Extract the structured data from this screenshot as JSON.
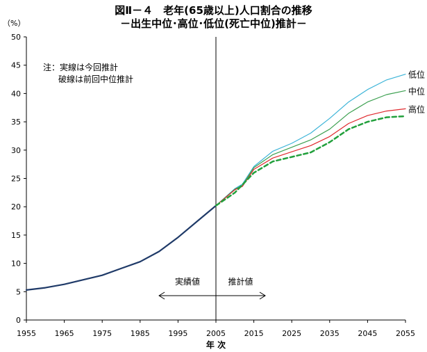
{
  "chart_data": {
    "type": "line",
    "title": "図Ⅱ－４　老年(65歳以上)人口割合の推移",
    "subtitle": "－出生中位･高位･低位(死亡中位)推計－",
    "ylabel": "（%）",
    "xlabel": "年 次",
    "xlim": [
      1955,
      2055
    ],
    "ylim": [
      0,
      50
    ],
    "x_ticks": [
      "1955",
      "1965",
      "1975",
      "1985",
      "1995",
      "2005",
      "2015",
      "2025",
      "2035",
      "2045",
      "2055"
    ],
    "y_ticks": [
      "0",
      "5",
      "10",
      "15",
      "20",
      "25",
      "30",
      "35",
      "40",
      "45",
      "50"
    ],
    "grid": false,
    "note_lines": [
      "注：実線は今回推計",
      "破線は前回中位推計"
    ],
    "divider_x": 2005,
    "arrow_labels": [
      "実績値",
      "推計値"
    ],
    "arrow_range": [
      1990,
      2018
    ],
    "series": [
      {
        "label": "",
        "color": "#1f3a68",
        "style": "solid",
        "x": [
          1955,
          1960,
          1965,
          1970,
          1975,
          1980,
          1985,
          1990,
          1995,
          2000,
          2005
        ],
        "y": [
          5.3,
          5.7,
          6.3,
          7.1,
          7.9,
          9.1,
          10.3,
          12.1,
          14.6,
          17.4,
          20.2
        ]
      },
      {
        "label": "低位",
        "color": "#3cb4d8",
        "style": "solid",
        "x": [
          2005,
          2010,
          2012,
          2015,
          2020,
          2025,
          2030,
          2035,
          2040,
          2045,
          2050,
          2055
        ],
        "y": [
          20.2,
          23.2,
          24.0,
          27.1,
          29.8,
          31.2,
          33.0,
          35.6,
          38.5,
          40.7,
          42.4,
          43.4
        ]
      },
      {
        "label": "中位",
        "color": "#3ca050",
        "style": "solid",
        "x": [
          2005,
          2010,
          2012,
          2015,
          2020,
          2025,
          2030,
          2035,
          2040,
          2045,
          2050,
          2055
        ],
        "y": [
          20.2,
          23.1,
          23.8,
          26.9,
          29.2,
          30.5,
          31.8,
          33.7,
          36.5,
          38.5,
          39.8,
          40.5
        ]
      },
      {
        "label": "高位",
        "color": "#e0282d",
        "style": "solid",
        "x": [
          2005,
          2010,
          2012,
          2015,
          2020,
          2025,
          2030,
          2035,
          2040,
          2045,
          2050,
          2055
        ],
        "y": [
          20.2,
          23.0,
          23.6,
          26.6,
          28.6,
          29.7,
          30.8,
          32.4,
          34.7,
          36.1,
          36.9,
          37.3
        ]
      },
      {
        "label": "",
        "color": "#22a03c",
        "style": "dashed",
        "x": [
          2005,
          2010,
          2015,
          2020,
          2025,
          2030,
          2035,
          2040,
          2045,
          2050,
          2055
        ],
        "y": [
          20.2,
          22.5,
          26.0,
          28.0,
          28.8,
          29.6,
          31.4,
          33.7,
          35.0,
          35.8,
          36.0
        ]
      }
    ]
  }
}
